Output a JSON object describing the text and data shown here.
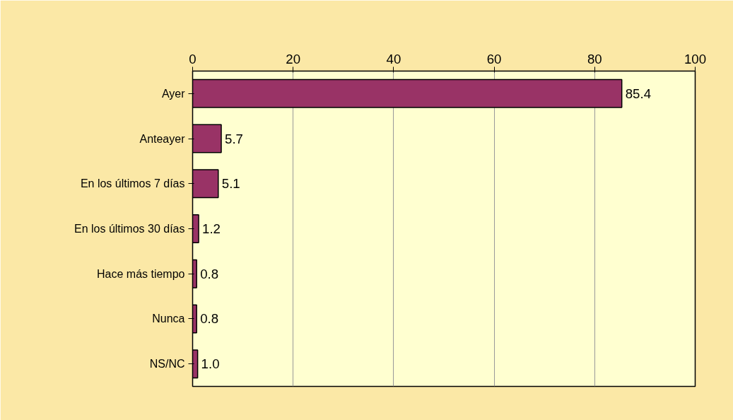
{
  "chart_data": {
    "type": "bar",
    "orientation": "horizontal",
    "categories": [
      "Ayer",
      "Anteayer",
      "En los últimos 7 días",
      "En los últimos 30 días",
      "Hace más tiempo",
      "Nunca",
      "NS/NC"
    ],
    "values": [
      85.4,
      5.7,
      5.1,
      1.2,
      0.8,
      0.8,
      1.0
    ],
    "value_labels": [
      "85.4",
      "5.7",
      "5.1",
      "1.2",
      "0.8",
      "0.8",
      "1.0"
    ],
    "color": "#993366",
    "xlim": [
      0,
      100
    ],
    "xticks": [
      0,
      20,
      40,
      60,
      80,
      100
    ],
    "grid": "x"
  }
}
